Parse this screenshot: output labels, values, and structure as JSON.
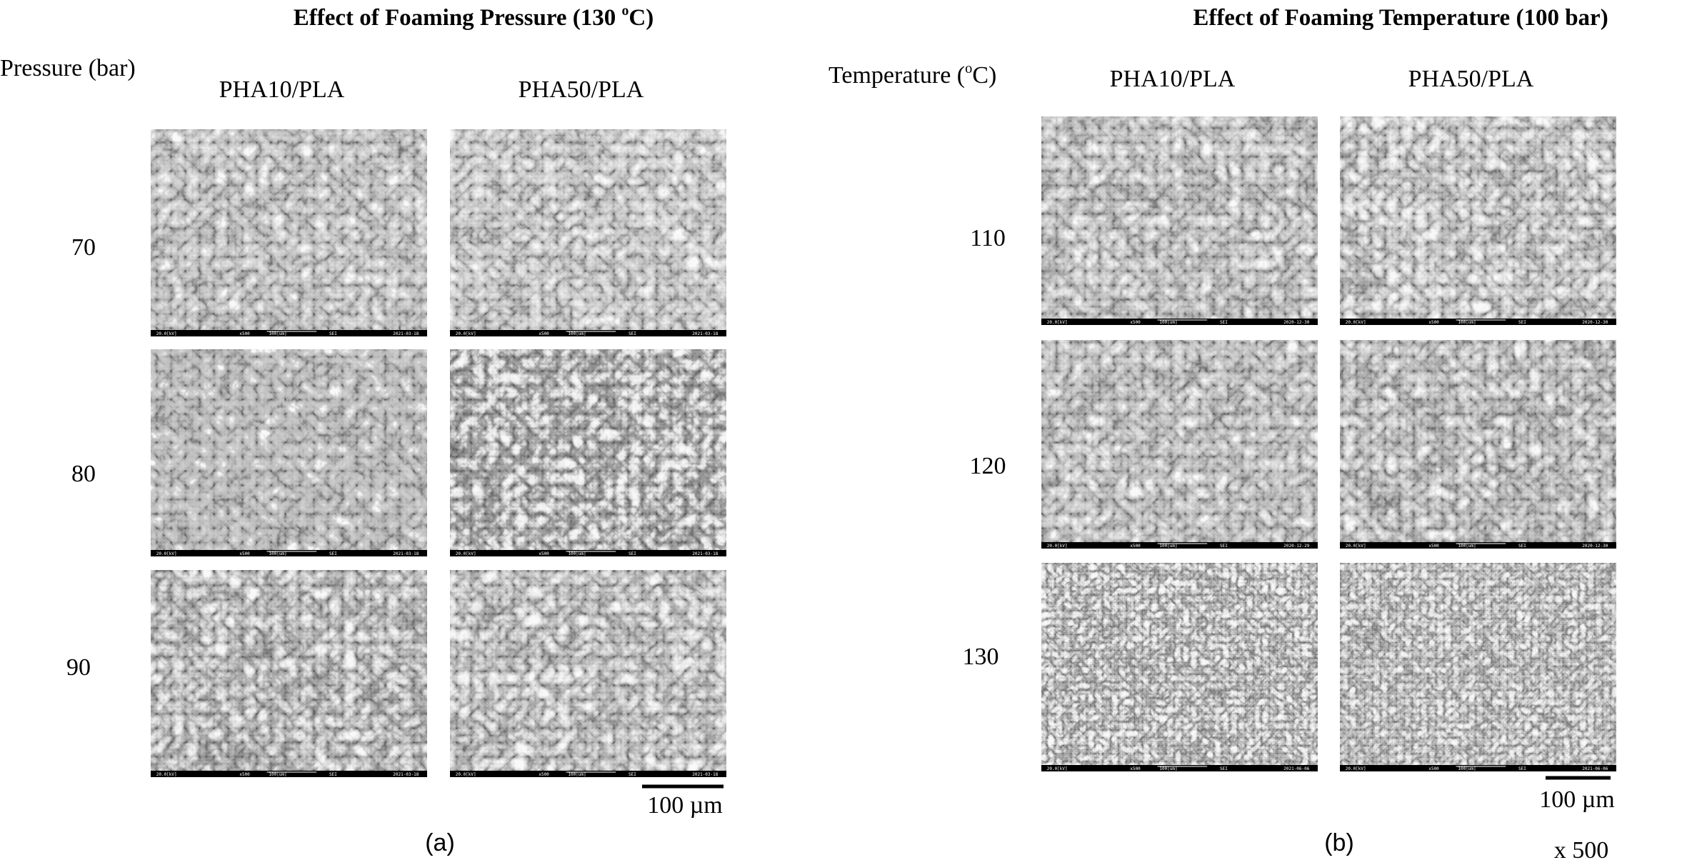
{
  "panels": [
    {
      "title": {
        "before": "Effect of Foaming Pressure (130 ",
        "sup": "o",
        "after": "C)"
      },
      "row_axis_label": {
        "before": "Pressure (bar)",
        "sup": "",
        "after": ""
      },
      "columns": [
        "PHA10/PLA",
        "PHA50/PLA"
      ],
      "rows": [
        {
          "label": "70",
          "images": [
            {
              "kv": "20.0[kV]",
              "mag": "x500",
              "scale": "100[um]",
              "det": "SEI",
              "date": "2021-03-18"
            },
            {
              "kv": "20.0[kV]",
              "mag": "x500",
              "scale": "100[um]",
              "det": "SEI",
              "date": "2021-03-18"
            }
          ]
        },
        {
          "label": "80",
          "images": [
            {
              "kv": "20.0[kV]",
              "mag": "x500",
              "scale": "100[um]",
              "det": "SEI",
              "date": "2021-03-18"
            },
            {
              "kv": "20.0[kV]",
              "mag": "x500",
              "scale": "100[um]",
              "det": "SEI",
              "date": "2021-03-18"
            }
          ]
        },
        {
          "label": "90",
          "images": [
            {
              "kv": "20.0[kV]",
              "mag": "x500",
              "scale": "100[um]",
              "det": "SEI",
              "date": "2021-03-18"
            },
            {
              "kv": "20.0[kV]",
              "mag": "x500",
              "scale": "100[um]",
              "det": "SEI",
              "date": "2021-03-18"
            }
          ]
        }
      ],
      "scale_bar": "100 µm",
      "panel_label": "(a)"
    },
    {
      "title": {
        "before": "Effect of Foaming Temperature (100 bar)",
        "sup": "",
        "after": ""
      },
      "row_axis_label": {
        "before": "Temperature (",
        "sup": "o",
        "after": "C)"
      },
      "columns": [
        "PHA10/PLA",
        "PHA50/PLA"
      ],
      "rows": [
        {
          "label": "110",
          "images": [
            {
              "kv": "20.0[kV]",
              "mag": "x500",
              "scale": "100[um]",
              "det": "SEI",
              "date": "2020-12-30"
            },
            {
              "kv": "20.0[kV]",
              "mag": "x500",
              "scale": "100[um]",
              "det": "SEI",
              "date": "2020-12-30"
            }
          ]
        },
        {
          "label": "120",
          "images": [
            {
              "kv": "20.0[kV]",
              "mag": "x500",
              "scale": "100[um]",
              "det": "SEI",
              "date": "2020-12-29"
            },
            {
              "kv": "20.0[kV]",
              "mag": "x500",
              "scale": "100[um]",
              "det": "SEI",
              "date": "2020-12-30"
            }
          ]
        },
        {
          "label": "130",
          "images": [
            {
              "kv": "20.0[kV]",
              "mag": "x500",
              "scale": "100[um]",
              "det": "SEI",
              "date": "2021-06-06"
            },
            {
              "kv": "20.0[kV]",
              "mag": "x500",
              "scale": "100[um]",
              "det": "SEI",
              "date": "2021-06-06"
            }
          ]
        }
      ],
      "scale_bar": "100 µm",
      "panel_label": "(b)"
    }
  ],
  "magnification": "x 500"
}
